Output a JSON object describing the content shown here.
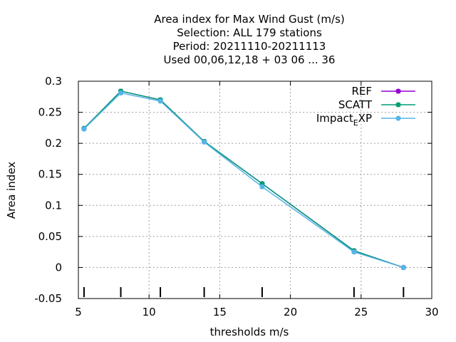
{
  "chart_data": {
    "type": "line",
    "title_lines": [
      "Area index  for Max Wind Gust (m/s)",
      "Selection: ALL    179 stations",
      "Period: 20211110-20211113",
      "Used  00,06,12,18 + 03 06 ... 36"
    ],
    "xlabel": "thresholds m/s",
    "ylabel": "Area index",
    "xlim": [
      5,
      30
    ],
    "ylim": [
      -0.05,
      0.3
    ],
    "xticks": [
      5,
      10,
      15,
      20,
      25,
      30
    ],
    "xtick_labels": [
      "5",
      "10",
      "15",
      "20",
      "25",
      "30"
    ],
    "yticks": [
      -0.05,
      0,
      0.05,
      0.1,
      0.15,
      0.2,
      0.25,
      0.3
    ],
    "ytick_labels": [
      "-0.05",
      "0",
      "0.05",
      "0.1",
      "0.15",
      "0.2",
      "0.25",
      "0.3"
    ],
    "grid": true,
    "legend_position": "top-right",
    "threshold_markers": [
      5.4,
      8.0,
      10.8,
      13.9,
      18.0,
      24.5,
      28.0
    ],
    "series": [
      {
        "name": "REF",
        "color": "#9400d3",
        "x": [
          5.4,
          8.0,
          10.8,
          13.9,
          18.0,
          24.5,
          28.0
        ],
        "y": [
          0.224,
          0.284,
          0.27,
          0.203,
          0.135,
          0.027,
          0.0
        ]
      },
      {
        "name": "SCATT",
        "color": "#009e73",
        "x": [
          5.4,
          8.0,
          10.8,
          13.9,
          18.0,
          24.5,
          28.0
        ],
        "y": [
          0.224,
          0.284,
          0.27,
          0.203,
          0.135,
          0.027,
          0.0
        ]
      },
      {
        "name": "Impact_EXP",
        "legend_main": "Impact",
        "legend_sub": "E",
        "legend_tail": "XP",
        "color": "#56b4e9",
        "x": [
          5.4,
          8.0,
          10.8,
          13.9,
          18.0,
          24.5,
          28.0
        ],
        "y": [
          0.223,
          0.281,
          0.268,
          0.202,
          0.13,
          0.025,
          0.0
        ]
      }
    ]
  }
}
